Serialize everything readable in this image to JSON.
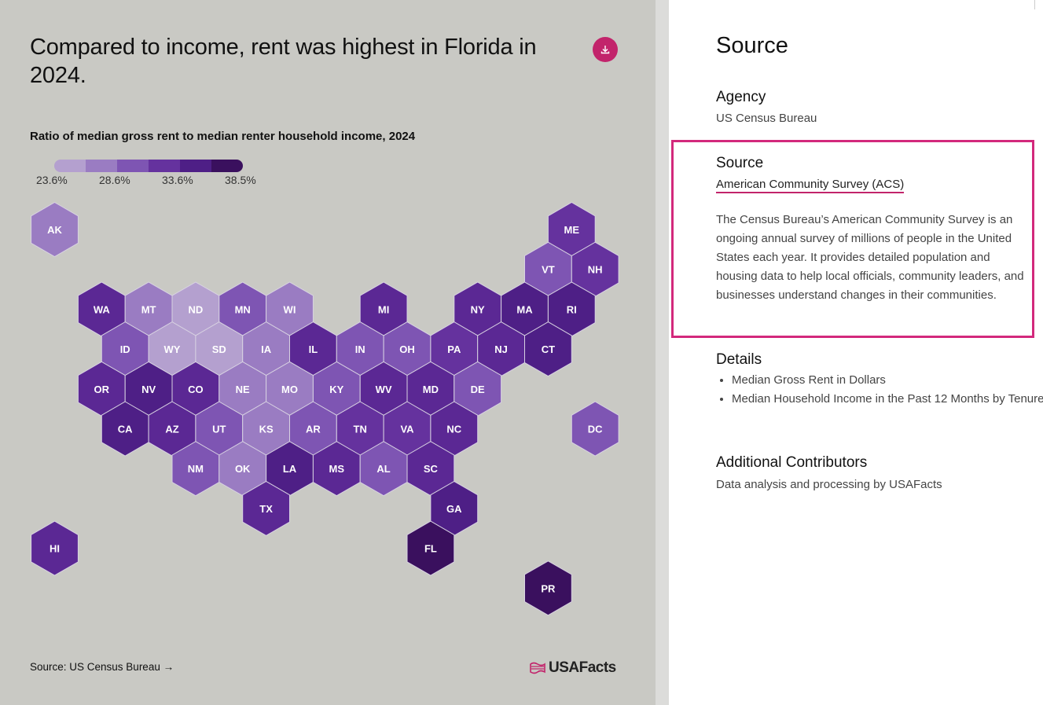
{
  "chart": {
    "title": "Compared to income, rent was highest in Florida in 2024.",
    "subtitle": "Ratio of median gross rent to median renter household income, 2024",
    "legend_labels": [
      "23.6%",
      "28.6%",
      "33.6%",
      "38.5%"
    ],
    "legend_colors": [
      "#b4a0cf",
      "#9a7cc2",
      "#7e55b3",
      "#65329e",
      "#4e1f86",
      "#3a105e"
    ],
    "download_icon": "download-icon",
    "source_link": "Source: US Census Bureau",
    "arrow_icon": "arrow-right-icon",
    "logo_text": "USAFacts",
    "logo_icon": "usa-flag-icon",
    "accent_color": "#c2246b"
  },
  "chart_data": {
    "type": "hex-tile-map",
    "title": "Compared to income, rent was highest in Florida in 2024.",
    "subtitle": "Ratio of median gross rent to median renter household income, 2024",
    "legend_range": [
      "23.6%",
      "38.5%"
    ],
    "bins": 6,
    "states": [
      {
        "code": "AK",
        "bin": 1,
        "fill": "#9a7cc2"
      },
      {
        "code": "ME",
        "bin": 3,
        "fill": "#65329e"
      },
      {
        "code": "VT",
        "bin": 2,
        "fill": "#7e55b3"
      },
      {
        "code": "NH",
        "bin": 3,
        "fill": "#65329e"
      },
      {
        "code": "WA",
        "bin": 3,
        "fill": "#5b2894"
      },
      {
        "code": "MT",
        "bin": 1,
        "fill": "#9a7cc2"
      },
      {
        "code": "ND",
        "bin": 0,
        "fill": "#b4a0cf"
      },
      {
        "code": "MN",
        "bin": 2,
        "fill": "#7e55b3"
      },
      {
        "code": "WI",
        "bin": 1,
        "fill": "#9a7cc2"
      },
      {
        "code": "MI",
        "bin": 3,
        "fill": "#5b2894"
      },
      {
        "code": "NY",
        "bin": 3,
        "fill": "#5b2894"
      },
      {
        "code": "MA",
        "bin": 4,
        "fill": "#4e1f86"
      },
      {
        "code": "RI",
        "bin": 4,
        "fill": "#4e1f86"
      },
      {
        "code": "ID",
        "bin": 2,
        "fill": "#7e55b3"
      },
      {
        "code": "WY",
        "bin": 0,
        "fill": "#b4a0cf"
      },
      {
        "code": "SD",
        "bin": 0,
        "fill": "#b4a0cf"
      },
      {
        "code": "IA",
        "bin": 1,
        "fill": "#9a7cc2"
      },
      {
        "code": "IL",
        "bin": 3,
        "fill": "#5b2894"
      },
      {
        "code": "IN",
        "bin": 2,
        "fill": "#7e55b3"
      },
      {
        "code": "OH",
        "bin": 2,
        "fill": "#7e55b3"
      },
      {
        "code": "PA",
        "bin": 3,
        "fill": "#65329e"
      },
      {
        "code": "NJ",
        "bin": 3,
        "fill": "#5b2894"
      },
      {
        "code": "CT",
        "bin": 4,
        "fill": "#4e1f86"
      },
      {
        "code": "OR",
        "bin": 3,
        "fill": "#5b2894"
      },
      {
        "code": "NV",
        "bin": 4,
        "fill": "#4e1f86"
      },
      {
        "code": "CO",
        "bin": 3,
        "fill": "#5b2894"
      },
      {
        "code": "NE",
        "bin": 1,
        "fill": "#9a7cc2"
      },
      {
        "code": "MO",
        "bin": 1,
        "fill": "#9a7cc2"
      },
      {
        "code": "KY",
        "bin": 2,
        "fill": "#7e55b3"
      },
      {
        "code": "WV",
        "bin": 3,
        "fill": "#5b2894"
      },
      {
        "code": "MD",
        "bin": 3,
        "fill": "#5b2894"
      },
      {
        "code": "DE",
        "bin": 2,
        "fill": "#7e55b3"
      },
      {
        "code": "CA",
        "bin": 4,
        "fill": "#4e1f86"
      },
      {
        "code": "AZ",
        "bin": 3,
        "fill": "#5b2894"
      },
      {
        "code": "UT",
        "bin": 2,
        "fill": "#7e55b3"
      },
      {
        "code": "KS",
        "bin": 1,
        "fill": "#9a7cc2"
      },
      {
        "code": "AR",
        "bin": 2,
        "fill": "#7e55b3"
      },
      {
        "code": "TN",
        "bin": 3,
        "fill": "#65329e"
      },
      {
        "code": "VA",
        "bin": 3,
        "fill": "#65329e"
      },
      {
        "code": "NC",
        "bin": 3,
        "fill": "#5b2894"
      },
      {
        "code": "DC",
        "bin": 2,
        "fill": "#7e55b3"
      },
      {
        "code": "NM",
        "bin": 2,
        "fill": "#7e55b3"
      },
      {
        "code": "OK",
        "bin": 1,
        "fill": "#9a7cc2"
      },
      {
        "code": "LA",
        "bin": 4,
        "fill": "#4e1f86"
      },
      {
        "code": "MS",
        "bin": 3,
        "fill": "#5b2894"
      },
      {
        "code": "AL",
        "bin": 2,
        "fill": "#7e55b3"
      },
      {
        "code": "SC",
        "bin": 3,
        "fill": "#5b2894"
      },
      {
        "code": "TX",
        "bin": 3,
        "fill": "#5b2894"
      },
      {
        "code": "GA",
        "bin": 4,
        "fill": "#4e1f86"
      },
      {
        "code": "HI",
        "bin": 3,
        "fill": "#5b2894"
      },
      {
        "code": "FL",
        "bin": 5,
        "fill": "#3a105e"
      },
      {
        "code": "PR",
        "bin": 5,
        "fill": "#3a105e"
      }
    ]
  },
  "info": {
    "title": "Source",
    "agency_heading": "Agency",
    "agency_value": "US Census Bureau",
    "source_heading": "Source",
    "source_link": "American Community Survey (ACS)",
    "source_description": "The Census Bureau’s American Community Survey is an ongoing annual survey of millions of people in the United States each year. It provides detailed population and housing data to help local officials, community leaders, and businesses understand changes in their communities.",
    "details_heading": "Details",
    "details": [
      "Median Gross Rent in Dollars",
      "Median Household Income in the Past 12 Months by Tenure"
    ],
    "contributors_heading": "Additional Contributors",
    "contributors_value": "Data analysis and processing by USAFacts",
    "highlight_color": "#d3297c"
  }
}
